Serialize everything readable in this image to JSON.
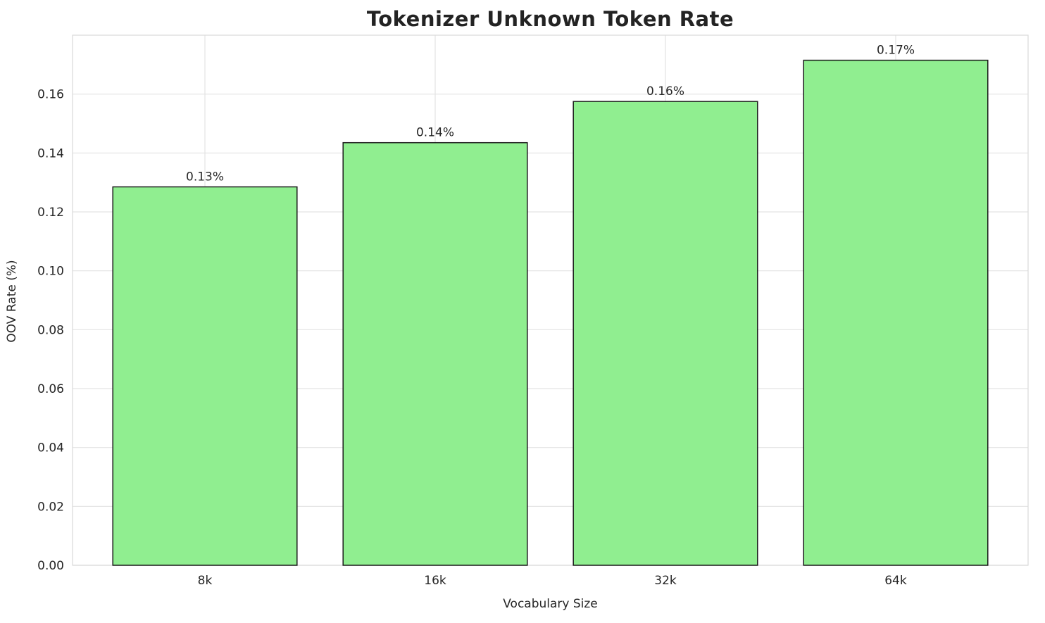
{
  "chart_data": {
    "type": "bar",
    "title": "Tokenizer Unknown Token Rate",
    "xlabel": "Vocabulary Size",
    "ylabel": "OOV Rate (%)",
    "categories": [
      "8k",
      "16k",
      "32k",
      "64k"
    ],
    "values": [
      0.1285,
      0.1435,
      0.1575,
      0.1715
    ],
    "bar_labels": [
      "0.13%",
      "0.14%",
      "0.16%",
      "0.17%"
    ],
    "ylim": [
      0,
      0.18
    ],
    "yticks": [
      0.0,
      0.02,
      0.04,
      0.06,
      0.08,
      0.1,
      0.12,
      0.14,
      0.16
    ],
    "ytick_labels": [
      "0.00",
      "0.02",
      "0.04",
      "0.06",
      "0.08",
      "0.10",
      "0.12",
      "0.14",
      "0.16"
    ],
    "grid": true,
    "legend": null,
    "bar_color": "#90EE90",
    "bar_edge_color": "#1a1a1a",
    "grid_color": "#e3e3e3",
    "spine_color": "#d9d9d9",
    "text_color": "#262626",
    "background": "#ffffff"
  }
}
